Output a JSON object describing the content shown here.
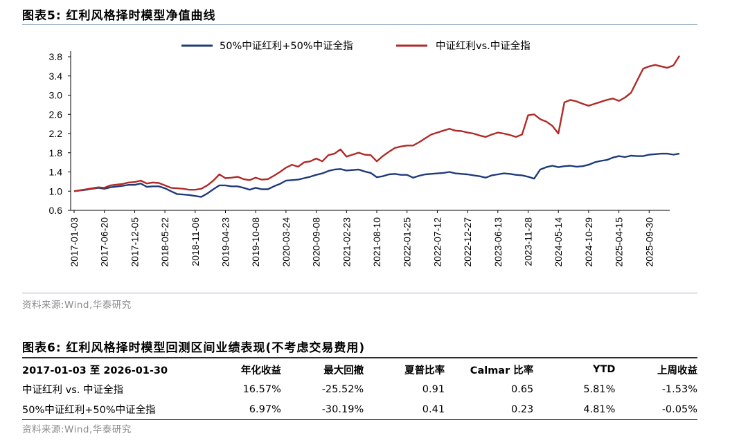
{
  "figure5": {
    "title": "图表5:   红利风格择时模型净值曲线",
    "source": "资料来源:Wind,华泰研究"
  },
  "chart_data": {
    "type": "line",
    "title": "红利风格择时模型净值曲线",
    "ylim": [
      0.6,
      3.8
    ],
    "yticks": [
      "0.6",
      "1.0",
      "1.4",
      "1.8",
      "2.2",
      "2.6",
      "3.0",
      "3.4",
      "3.8"
    ],
    "xticks": [
      "2017-01-03",
      "2017-06-20",
      "2017-12-05",
      "2018-05-22",
      "2018-11-06",
      "2019-04-23",
      "2019-10-08",
      "2020-03-24",
      "2020-09-08",
      "2021-02-23",
      "2021-08-10",
      "2022-01-25",
      "2022-07-12",
      "2022-12-27",
      "2023-06-13",
      "2023-11-28",
      "2024-05-14",
      "2024-10-29",
      "2025-04-15",
      "2025-09-30"
    ],
    "legend_position": "top-center",
    "series": [
      {
        "name": "50%中证红利+50%中证全指",
        "color": "#1f3a7a",
        "points": [
          [
            0,
            1.0
          ],
          [
            1,
            1.03
          ],
          [
            2,
            1.07
          ],
          [
            2.5,
            1.05
          ],
          [
            3,
            1.08
          ],
          [
            4,
            1.11
          ],
          [
            4.5,
            1.13
          ],
          [
            5,
            1.13
          ],
          [
            5.5,
            1.16
          ],
          [
            6,
            1.09
          ],
          [
            6.5,
            1.1
          ],
          [
            7,
            1.1
          ],
          [
            7.5,
            1.06
          ],
          [
            8,
            1.0
          ],
          [
            8.5,
            0.94
          ],
          [
            9,
            0.93
          ],
          [
            9.5,
            0.92
          ],
          [
            10,
            0.9
          ],
          [
            10.5,
            0.88
          ],
          [
            11,
            0.95
          ],
          [
            11.5,
            1.04
          ],
          [
            12,
            1.12
          ],
          [
            12.5,
            1.12
          ],
          [
            13,
            1.1
          ],
          [
            13.5,
            1.1
          ],
          [
            14,
            1.07
          ],
          [
            14.5,
            1.03
          ],
          [
            15,
            1.07
          ],
          [
            15.5,
            1.04
          ],
          [
            16,
            1.04
          ],
          [
            16.5,
            1.1
          ],
          [
            17,
            1.15
          ],
          [
            17.5,
            1.22
          ],
          [
            18,
            1.23
          ],
          [
            18.5,
            1.24
          ],
          [
            19,
            1.27
          ],
          [
            19.5,
            1.3
          ],
          [
            20,
            1.34
          ],
          [
            20.5,
            1.37
          ],
          [
            21,
            1.42
          ],
          [
            21.5,
            1.45
          ],
          [
            22,
            1.46
          ],
          [
            22.5,
            1.43
          ],
          [
            23,
            1.44
          ],
          [
            23.5,
            1.45
          ],
          [
            24,
            1.41
          ],
          [
            24.5,
            1.38
          ],
          [
            25,
            1.29
          ],
          [
            25.5,
            1.31
          ],
          [
            26,
            1.35
          ],
          [
            26.5,
            1.36
          ],
          [
            27,
            1.34
          ],
          [
            27.5,
            1.34
          ],
          [
            28,
            1.28
          ],
          [
            28.5,
            1.32
          ],
          [
            29,
            1.35
          ],
          [
            29.5,
            1.36
          ],
          [
            30,
            1.37
          ],
          [
            30.5,
            1.38
          ],
          [
            31,
            1.4
          ],
          [
            31.5,
            1.37
          ],
          [
            32,
            1.36
          ],
          [
            32.5,
            1.35
          ],
          [
            33,
            1.33
          ],
          [
            33.5,
            1.31
          ],
          [
            34,
            1.28
          ],
          [
            34.5,
            1.33
          ],
          [
            35,
            1.35
          ],
          [
            35.5,
            1.37
          ],
          [
            36,
            1.36
          ],
          [
            36.5,
            1.34
          ],
          [
            37,
            1.33
          ],
          [
            37.5,
            1.3
          ],
          [
            38,
            1.26
          ],
          [
            38.5,
            1.45
          ],
          [
            39,
            1.5
          ],
          [
            39.5,
            1.53
          ],
          [
            40,
            1.5
          ],
          [
            40.5,
            1.52
          ],
          [
            41,
            1.53
          ],
          [
            41.5,
            1.51
          ],
          [
            42,
            1.52
          ],
          [
            42.5,
            1.55
          ],
          [
            43,
            1.6
          ],
          [
            43.5,
            1.63
          ],
          [
            44,
            1.65
          ],
          [
            44.5,
            1.7
          ],
          [
            45,
            1.73
          ],
          [
            45.5,
            1.71
          ],
          [
            46,
            1.74
          ],
          [
            46.5,
            1.73
          ],
          [
            47,
            1.73
          ],
          [
            47.5,
            1.76
          ],
          [
            48,
            1.77
          ],
          [
            48.5,
            1.78
          ],
          [
            49,
            1.78
          ],
          [
            49.5,
            1.76
          ],
          [
            50,
            1.78
          ]
        ]
      },
      {
        "name": "中证红利vs.中证全指",
        "color": "#b02a26",
        "points": [
          [
            0,
            1.0
          ],
          [
            1,
            1.04
          ],
          [
            2,
            1.08
          ],
          [
            2.5,
            1.07
          ],
          [
            3,
            1.12
          ],
          [
            4,
            1.15
          ],
          [
            4.5,
            1.18
          ],
          [
            5,
            1.19
          ],
          [
            5.5,
            1.22
          ],
          [
            6,
            1.16
          ],
          [
            6.5,
            1.18
          ],
          [
            7,
            1.17
          ],
          [
            7.5,
            1.12
          ],
          [
            8,
            1.07
          ],
          [
            8.5,
            1.06
          ],
          [
            9,
            1.05
          ],
          [
            9.5,
            1.03
          ],
          [
            10,
            1.03
          ],
          [
            10.5,
            1.05
          ],
          [
            11,
            1.12
          ],
          [
            11.5,
            1.22
          ],
          [
            12,
            1.35
          ],
          [
            12.5,
            1.27
          ],
          [
            13,
            1.28
          ],
          [
            13.5,
            1.3
          ],
          [
            14,
            1.25
          ],
          [
            14.5,
            1.23
          ],
          [
            15,
            1.28
          ],
          [
            15.5,
            1.24
          ],
          [
            16,
            1.25
          ],
          [
            16.5,
            1.32
          ],
          [
            17,
            1.4
          ],
          [
            17.5,
            1.49
          ],
          [
            18,
            1.55
          ],
          [
            18.5,
            1.51
          ],
          [
            19,
            1.6
          ],
          [
            19.5,
            1.62
          ],
          [
            20,
            1.68
          ],
          [
            20.5,
            1.62
          ],
          [
            21,
            1.75
          ],
          [
            21.5,
            1.78
          ],
          [
            22,
            1.87
          ],
          [
            22.5,
            1.72
          ],
          [
            23,
            1.76
          ],
          [
            23.5,
            1.8
          ],
          [
            24,
            1.76
          ],
          [
            24.5,
            1.75
          ],
          [
            25,
            1.62
          ],
          [
            25.5,
            1.73
          ],
          [
            26,
            1.82
          ],
          [
            26.5,
            1.9
          ],
          [
            27,
            1.93
          ],
          [
            27.5,
            1.95
          ],
          [
            28,
            1.95
          ],
          [
            28.5,
            2.02
          ],
          [
            29,
            2.1
          ],
          [
            29.5,
            2.18
          ],
          [
            30,
            2.22
          ],
          [
            30.5,
            2.26
          ],
          [
            31,
            2.3
          ],
          [
            31.5,
            2.26
          ],
          [
            32,
            2.25
          ],
          [
            32.5,
            2.22
          ],
          [
            33,
            2.2
          ],
          [
            33.5,
            2.16
          ],
          [
            34,
            2.13
          ],
          [
            34.5,
            2.18
          ],
          [
            35,
            2.22
          ],
          [
            35.5,
            2.2
          ],
          [
            36,
            2.17
          ],
          [
            36.5,
            2.13
          ],
          [
            37,
            2.18
          ],
          [
            37.5,
            2.58
          ],
          [
            38,
            2.6
          ],
          [
            38.5,
            2.5
          ],
          [
            39,
            2.45
          ],
          [
            39.5,
            2.36
          ],
          [
            40,
            2.2
          ],
          [
            40.5,
            2.85
          ],
          [
            41,
            2.9
          ],
          [
            41.5,
            2.87
          ],
          [
            42,
            2.82
          ],
          [
            42.5,
            2.78
          ],
          [
            43,
            2.82
          ],
          [
            43.5,
            2.86
          ],
          [
            44,
            2.9
          ],
          [
            44.5,
            2.93
          ],
          [
            45,
            2.88
          ],
          [
            45.5,
            2.95
          ],
          [
            46,
            3.05
          ],
          [
            46.5,
            3.3
          ],
          [
            47,
            3.55
          ],
          [
            47.5,
            3.6
          ],
          [
            48,
            3.63
          ],
          [
            48.5,
            3.6
          ],
          [
            49,
            3.57
          ],
          [
            49.5,
            3.62
          ],
          [
            50,
            3.82
          ]
        ]
      }
    ]
  },
  "figure6": {
    "title": "图表6:   红利风格择时模型回测区间业绩表现(不考虑交易费用)",
    "headers": [
      "2017-01-03 至 2026-01-30",
      "年化收益",
      "最大回撤",
      "夏普比率",
      "Calmar 比率",
      "YTD",
      "上周收益"
    ],
    "rows": [
      [
        "中证红利  vs.  中证全指",
        "16.57%",
        "-25.52%",
        "0.91",
        "0.65",
        "5.81%",
        "-1.53%"
      ],
      [
        "50%中证红利+50%中证全指",
        "6.97%",
        "-30.19%",
        "0.41",
        "0.23",
        "4.81%",
        "-0.05%"
      ]
    ],
    "source": "资料来源:Wind,华泰研究"
  }
}
